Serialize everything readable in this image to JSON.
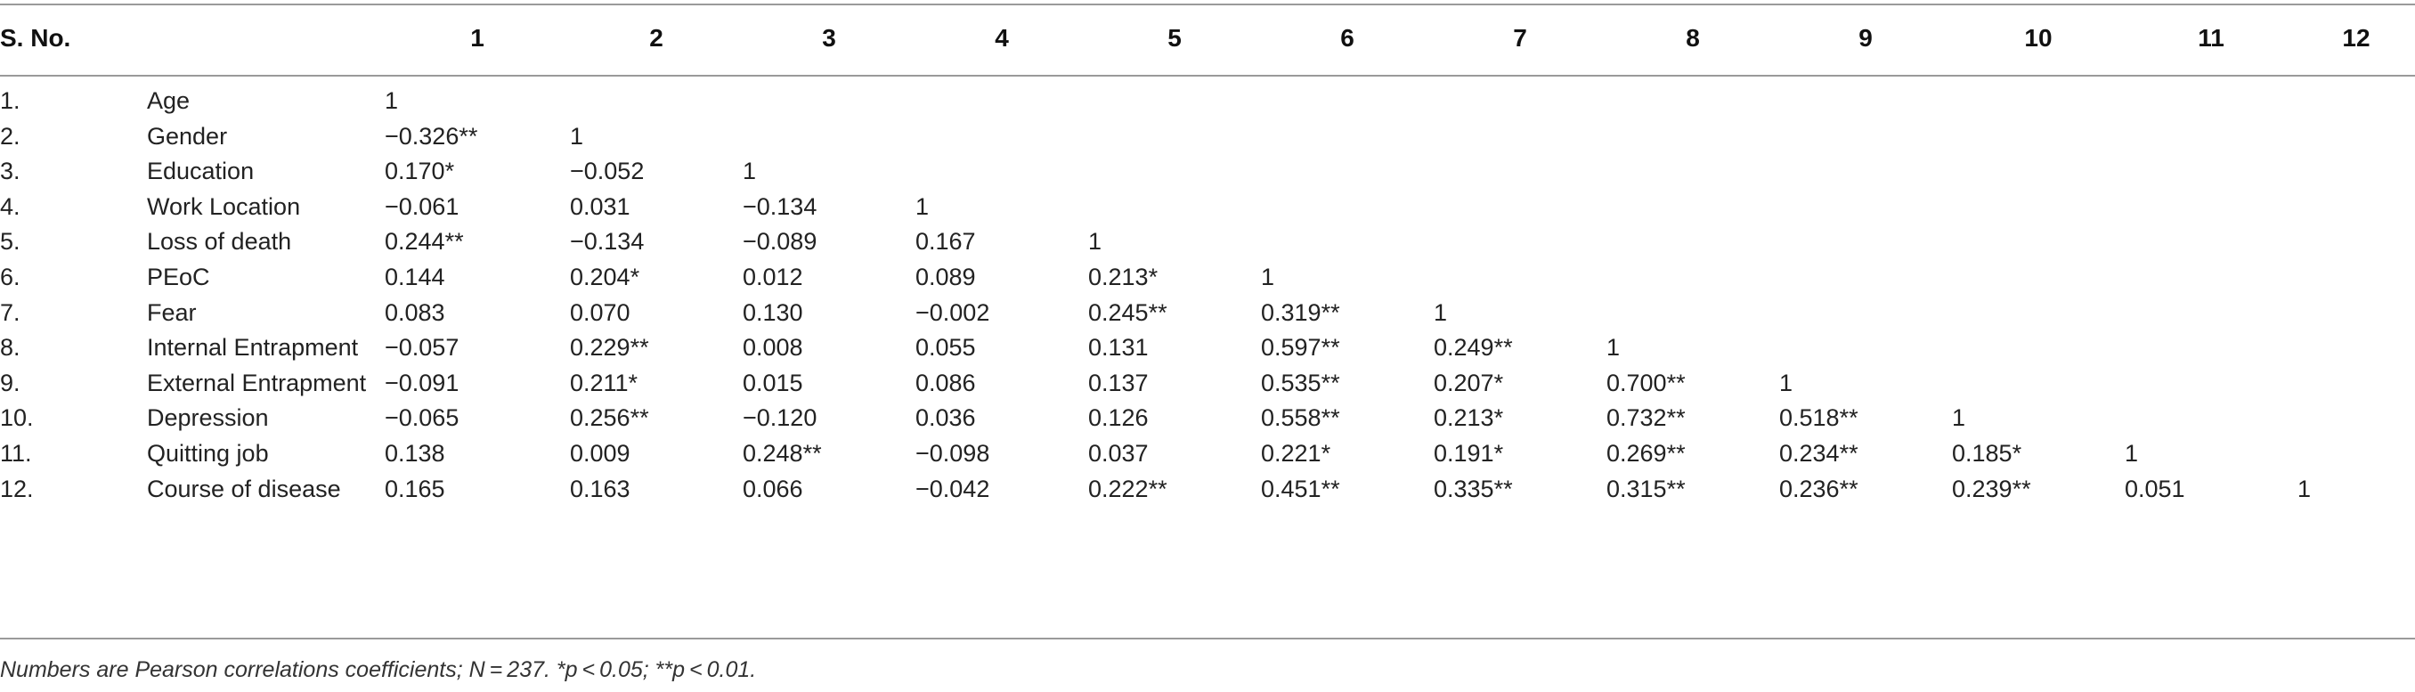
{
  "table": {
    "header": {
      "sno": "S. No.",
      "cols": [
        "1",
        "2",
        "3",
        "4",
        "5",
        "6",
        "7",
        "8",
        "9",
        "10",
        "11",
        "12"
      ]
    },
    "rows": [
      {
        "num": "1.",
        "var": "Age",
        "vals": [
          "1",
          "",
          "",
          "",
          "",
          "",
          "",
          "",
          "",
          "",
          "",
          ""
        ]
      },
      {
        "num": "2.",
        "var": "Gender",
        "vals": [
          "−0.326**",
          "1",
          "",
          "",
          "",
          "",
          "",
          "",
          "",
          "",
          "",
          ""
        ]
      },
      {
        "num": "3.",
        "var": "Education",
        "vals": [
          "0.170*",
          "−0.052",
          "1",
          "",
          "",
          "",
          "",
          "",
          "",
          "",
          "",
          ""
        ]
      },
      {
        "num": "4.",
        "var": "Work Location",
        "vals": [
          "−0.061",
          "0.031",
          "−0.134",
          "1",
          "",
          "",
          "",
          "",
          "",
          "",
          "",
          ""
        ]
      },
      {
        "num": "5.",
        "var": "Loss of death",
        "vals": [
          "0.244**",
          "−0.134",
          "−0.089",
          "0.167",
          "1",
          "",
          "",
          "",
          "",
          "",
          "",
          ""
        ]
      },
      {
        "num": "6.",
        "var": "PEoC",
        "vals": [
          "0.144",
          "0.204*",
          "0.012",
          "0.089",
          "0.213*",
          "1",
          "",
          "",
          "",
          "",
          "",
          ""
        ]
      },
      {
        "num": "7.",
        "var": "Fear",
        "vals": [
          "0.083",
          "0.070",
          "0.130",
          "−0.002",
          "0.245**",
          "0.319**",
          "1",
          "",
          "",
          "",
          "",
          ""
        ]
      },
      {
        "num": "8.",
        "var": "Internal Entrapment",
        "vals": [
          "−0.057",
          "0.229**",
          "0.008",
          "0.055",
          "0.131",
          "0.597**",
          "0.249**",
          "1",
          "",
          "",
          "",
          ""
        ]
      },
      {
        "num": "9.",
        "var": "External Entrapment",
        "vals": [
          "−0.091",
          "0.211*",
          "0.015",
          "0.086",
          "0.137",
          "0.535**",
          "0.207*",
          "0.700**",
          "1",
          "",
          "",
          ""
        ]
      },
      {
        "num": "10.",
        "var": "Depression",
        "vals": [
          "−0.065",
          "0.256**",
          "−0.120",
          "0.036",
          "0.126",
          "0.558**",
          "0.213*",
          "0.732**",
          "0.518**",
          "1",
          "",
          ""
        ]
      },
      {
        "num": "11.",
        "var": "Quitting job",
        "vals": [
          "0.138",
          "0.009",
          "0.248**",
          "−0.098",
          "0.037",
          "0.221*",
          "0.191*",
          "0.269**",
          "0.234**",
          "0.185*",
          "1",
          ""
        ]
      },
      {
        "num": "12.",
        "var": "Course of disease",
        "vals": [
          "0.165",
          "0.163",
          "0.066",
          "−0.042",
          "0.222**",
          "0.451**",
          "0.335**",
          "0.315**",
          "0.236**",
          "0.239**",
          "0.051",
          "1"
        ]
      }
    ]
  },
  "footnote": "Numbers are Pearson correlations coefficients; N = 237. *p < 0.05; **p < 0.01."
}
